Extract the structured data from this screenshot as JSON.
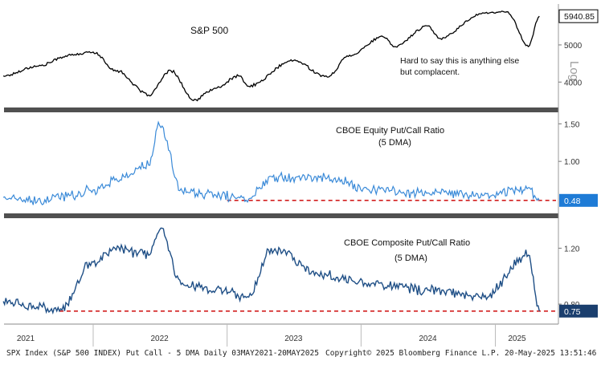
{
  "colors": {
    "sp500_line": "#000000",
    "equity_line": "#3a8ad8",
    "composite_line": "#1f4f86",
    "dashed_line": "#d21f1f",
    "panel_divider": "#505050",
    "badge_white_bg": "#ffffff",
    "badge_blue_bg": "#1e7bd6",
    "badge_navy_bg": "#1b3f6e"
  },
  "chart_data": [
    {
      "type": "line",
      "title": "S&P 500",
      "annotation": [
        "Hard to say this is anything else",
        "but complacent."
      ],
      "scale_label": "Log",
      "scale": "log",
      "yticks": [
        4000,
        5000
      ],
      "ylim": [
        3500,
        6300
      ],
      "last_value_label": "5940.85",
      "x_dates": [
        "2021-05",
        "2021-08",
        "2021-11",
        "2022-01",
        "2022-03",
        "2022-06",
        "2022-08",
        "2022-10",
        "2022-12",
        "2023-02",
        "2023-03",
        "2023-07",
        "2023-10",
        "2023-12",
        "2024-03",
        "2024-04",
        "2024-07",
        "2024-08",
        "2024-12",
        "2025-02",
        "2025-04",
        "2025-05"
      ],
      "series": [
        {
          "values": [
            4150,
            4400,
            4700,
            4790,
            4300,
            3700,
            4280,
            3580,
            3850,
            4150,
            3900,
            4550,
            4120,
            4700,
            5250,
            4950,
            5600,
            5200,
            6050,
            6100,
            4950,
            5940
          ]
        }
      ]
    },
    {
      "type": "line",
      "title": [
        "CBOE Equity Put/Call Ratio",
        "(5 DMA)"
      ],
      "yticks": [
        1.0,
        1.5
      ],
      "ylim": [
        0.35,
        1.6
      ],
      "last_value_label": "0.48",
      "reference_level": 0.48,
      "reference_start": "2023-01",
      "x_dates": [
        "2021-05",
        "2021-08",
        "2021-11",
        "2022-01",
        "2022-03",
        "2022-06",
        "2022-07",
        "2022-09",
        "2022-12",
        "2023-03",
        "2023-05",
        "2023-10",
        "2024-02",
        "2024-07",
        "2024-12",
        "2025-04",
        "2025-05"
      ],
      "series": [
        {
          "values": [
            0.52,
            0.46,
            0.55,
            0.62,
            0.75,
            0.95,
            1.48,
            0.6,
            0.55,
            0.5,
            0.8,
            0.78,
            0.62,
            0.58,
            0.55,
            0.65,
            0.48
          ]
        }
      ]
    },
    {
      "type": "line",
      "title": [
        "CBOE Composite Put/Call Ratio",
        "(5 DMA)"
      ],
      "yticks": [
        0.8,
        1.2
      ],
      "ylim": [
        0.68,
        1.38
      ],
      "last_value_label": "0.75",
      "reference_level": 0.75,
      "reference_start": "2021-10",
      "x_dates": [
        "2021-05",
        "2021-08",
        "2021-10",
        "2022-01",
        "2022-03",
        "2022-06",
        "2022-07",
        "2022-09",
        "2022-12",
        "2023-03",
        "2023-05",
        "2023-10",
        "2024-02",
        "2024-07",
        "2024-12",
        "2025-04",
        "2025-05"
      ],
      "series": [
        {
          "values": [
            0.82,
            0.78,
            0.75,
            1.1,
            1.2,
            1.15,
            1.33,
            0.95,
            0.9,
            0.85,
            1.2,
            1.0,
            0.95,
            0.9,
            0.85,
            1.15,
            0.75
          ]
        }
      ]
    }
  ],
  "x_axis": {
    "year_labels": [
      {
        "label": "2021",
        "date": "2021-07"
      },
      {
        "label": "2022",
        "date": "2022-07"
      },
      {
        "label": "2023",
        "date": "2023-07"
      },
      {
        "label": "2024",
        "date": "2024-07"
      },
      {
        "label": "2025",
        "date": "2025-03"
      }
    ],
    "start": "2021-05-03",
    "end": "2025-05-20"
  },
  "footer": {
    "left": "SPX Index (S&P 500 INDEX) Put Call - 5 DMA  Daily 03MAY2021-20MAY2025",
    "center": "Copyright© 2025 Bloomberg Finance L.P.",
    "right": "20-May-2025 13:51:46"
  }
}
